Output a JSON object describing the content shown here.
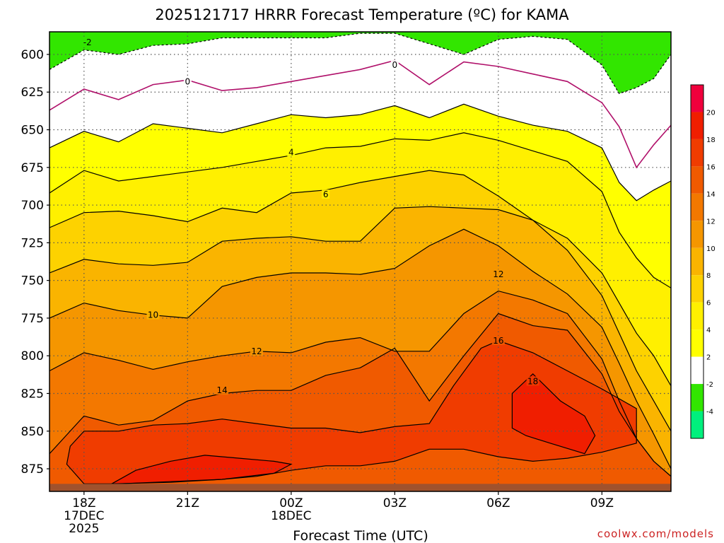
{
  "chart_data": {
    "type": "contour",
    "title": "2025121717 HRRR Forecast Temperature (ºC) for KAMA",
    "xlabel": "Forecast Time (UTC)",
    "ylabel": "",
    "credit": "coolwx.com/models",
    "x_ticks": [
      {
        "hour": 0,
        "lines": [
          "18Z",
          "17DEC",
          "2025"
        ]
      },
      {
        "hour": 3,
        "lines": [
          "21Z"
        ]
      },
      {
        "hour": 6,
        "lines": [
          "00Z",
          "18DEC"
        ]
      },
      {
        "hour": 9,
        "lines": [
          "03Z"
        ]
      },
      {
        "hour": 12,
        "lines": [
          "06Z"
        ]
      },
      {
        "hour": 15,
        "lines": [
          "09Z"
        ]
      }
    ],
    "xlim_hours": [
      -1,
      17
    ],
    "y_axis": {
      "unit": "hPa",
      "ticks": [
        600,
        625,
        650,
        675,
        700,
        725,
        750,
        775,
        800,
        825,
        850,
        875
      ],
      "ylim": [
        585,
        890
      ],
      "surface_pressure": 885
    },
    "colorbar": {
      "labels": [
        20,
        18,
        16,
        14,
        12,
        10,
        8,
        6,
        4,
        2,
        -2,
        -4
      ],
      "colors": [
        "#f0003c",
        "#f01e00",
        "#f03c00",
        "#f05a00",
        "#f37800",
        "#f59600",
        "#fab400",
        "#fdd200",
        "#fff000",
        "#ffff00",
        "#ffffff",
        "#32e600",
        "#00f07d"
      ]
    },
    "contour_labels": [
      {
        "value": -2,
        "text": "-2",
        "hour": 0.1,
        "pressure": 592
      },
      {
        "value": 0,
        "text": "0",
        "hour": 3.0,
        "pressure": 618
      },
      {
        "value": 0,
        "text": "0",
        "hour": 9.0,
        "pressure": 607
      },
      {
        "value": 4,
        "text": "4",
        "hour": 6.0,
        "pressure": 665
      },
      {
        "value": 6,
        "text": "6",
        "hour": 7.0,
        "pressure": 693
      },
      {
        "value": 10,
        "text": "10",
        "hour": 2.0,
        "pressure": 773
      },
      {
        "value": 12,
        "text": "12",
        "hour": 5.0,
        "pressure": 797
      },
      {
        "value": 12,
        "text": "12",
        "hour": 12.0,
        "pressure": 746
      },
      {
        "value": 14,
        "text": "14",
        "hour": 4.0,
        "pressure": 823
      },
      {
        "value": 16,
        "text": "16",
        "hour": 12.0,
        "pressure": 790
      },
      {
        "value": 18,
        "text": "18",
        "hour": 13.0,
        "pressure": 817
      }
    ],
    "isotherms": [
      {
        "value": -2,
        "hours": [
          -1,
          0,
          1,
          2,
          3,
          4,
          5,
          6,
          7,
          8,
          9,
          10,
          11,
          12,
          13,
          14,
          15,
          15.5,
          16,
          16.5,
          17
        ],
        "pressure": [
          610,
          597,
          600,
          594,
          593,
          589,
          589,
          589,
          589,
          586,
          586,
          593,
          600,
          590,
          588,
          590,
          607,
          626,
          622,
          616,
          600
        ]
      },
      {
        "value": 0,
        "hours": [
          -1,
          0,
          1,
          2,
          3,
          4,
          5,
          6,
          7,
          8,
          9,
          10,
          11,
          12,
          13,
          14,
          15,
          15.5,
          16,
          16.5,
          17
        ],
        "pressure": [
          637,
          623,
          630,
          620,
          617,
          624,
          622,
          618,
          614,
          610,
          604,
          620,
          605,
          608,
          613,
          618,
          632,
          648,
          675,
          660,
          647
        ]
      },
      {
        "value": 2,
        "hours": [
          -1,
          0,
          1,
          2,
          3,
          4,
          5,
          6,
          7,
          8,
          9,
          10,
          11,
          12,
          13,
          14,
          15,
          15.5,
          16,
          16.5,
          17
        ],
        "pressure": [
          662,
          651,
          658,
          646,
          649,
          652,
          646,
          640,
          642,
          640,
          634,
          642,
          633,
          641,
          647,
          651,
          662,
          685,
          697,
          690,
          684
        ]
      },
      {
        "value": 4,
        "hours": [
          -1,
          0,
          1,
          2,
          3,
          4,
          5,
          6,
          7,
          8,
          9,
          10,
          11,
          12,
          13,
          14,
          15,
          15.5,
          16,
          16.5,
          17
        ],
        "pressure": [
          692,
          677,
          684,
          681,
          678,
          675,
          671,
          667,
          662,
          661,
          656,
          657,
          652,
          657,
          664,
          671,
          691,
          718,
          735,
          748,
          755
        ]
      },
      {
        "value": 6,
        "hours": [
          -1,
          0,
          1,
          2,
          3,
          4,
          5,
          6,
          7,
          8,
          9,
          10,
          11,
          12,
          13,
          14,
          15,
          15.5,
          16,
          16.5,
          17
        ],
        "pressure": [
          715,
          705,
          704,
          707,
          711,
          702,
          705,
          692,
          690,
          685,
          681,
          677,
          680,
          694,
          710,
          722,
          745,
          765,
          785,
          800,
          820
        ]
      },
      {
        "value": 8,
        "hours": [
          -1,
          0,
          1,
          2,
          3,
          4,
          5,
          6,
          7,
          8,
          9,
          10,
          11,
          12,
          13,
          14,
          15,
          15.5,
          16,
          16.5,
          17
        ],
        "pressure": [
          745,
          736,
          739,
          740,
          738,
          724,
          722,
          721,
          724,
          724,
          702,
          701,
          702,
          703,
          710,
          730,
          760,
          785,
          810,
          830,
          850
        ]
      },
      {
        "value": 10,
        "hours": [
          -1,
          0,
          1,
          2,
          3,
          4,
          5,
          6,
          7,
          8,
          9,
          10,
          11,
          12,
          13,
          14,
          15,
          15.5,
          16,
          16.5,
          17
        ],
        "pressure": [
          775,
          765,
          770,
          773,
          775,
          754,
          748,
          745,
          745,
          746,
          742,
          727,
          716,
          727,
          744,
          759,
          781,
          805,
          830,
          852,
          875
        ]
      },
      {
        "value": 12,
        "hours": [
          -1,
          0,
          1,
          2,
          3,
          4,
          5,
          6,
          7,
          8,
          9,
          10,
          11,
          12,
          13,
          14,
          15,
          15.5,
          16,
          16.5,
          17
        ],
        "pressure": [
          810,
          798,
          803,
          809,
          804,
          800,
          797,
          798,
          791,
          788,
          797,
          797,
          772,
          757,
          763,
          772,
          802,
          830,
          855,
          870,
          880
        ]
      },
      {
        "value": 14,
        "hours": [
          -1,
          0,
          1,
          2,
          3,
          4,
          5,
          6,
          7,
          8,
          9,
          10,
          11,
          12,
          13,
          14,
          15,
          15.5,
          16,
          16.5,
          17
        ],
        "pressure": [
          865,
          840,
          846,
          843,
          830,
          825,
          823,
          823,
          813,
          808,
          795,
          830,
          800,
          772,
          780,
          783,
          812,
          837,
          855,
          870,
          880
        ]
      }
    ],
    "closed_contours": [
      {
        "value": 16,
        "points": [
          [
            -0.5,
            872
          ],
          [
            -0.4,
            860
          ],
          [
            0,
            850
          ],
          [
            1,
            850
          ],
          [
            2,
            846
          ],
          [
            3,
            845
          ],
          [
            4,
            842
          ],
          [
            5,
            845
          ],
          [
            6,
            848
          ],
          [
            7,
            848
          ],
          [
            8,
            851
          ],
          [
            9,
            847
          ],
          [
            10,
            845
          ],
          [
            10.7,
            820
          ],
          [
            11.5,
            795
          ],
          [
            12,
            790
          ],
          [
            13,
            798
          ],
          [
            14,
            810
          ],
          [
            15,
            822
          ],
          [
            16,
            835
          ],
          [
            16,
            858
          ],
          [
            15,
            864
          ],
          [
            14,
            868
          ],
          [
            13,
            870
          ],
          [
            12,
            867
          ],
          [
            11,
            862
          ],
          [
            10,
            862
          ],
          [
            9,
            870
          ],
          [
            8,
            873
          ],
          [
            7,
            873
          ],
          [
            6,
            876
          ],
          [
            5,
            880
          ],
          [
            4,
            882
          ],
          [
            3,
            883
          ],
          [
            2,
            884
          ],
          [
            1,
            885
          ],
          [
            0,
            885
          ]
        ]
      },
      {
        "value": 18,
        "points": [
          [
            0.8,
            885
          ],
          [
            1.5,
            876
          ],
          [
            2.5,
            870
          ],
          [
            3.5,
            866
          ],
          [
            4.5,
            868
          ],
          [
            5.5,
            870
          ],
          [
            6,
            872
          ],
          [
            5.5,
            878
          ],
          [
            4,
            882
          ],
          [
            2.5,
            884
          ]
        ]
      },
      {
        "value": 18,
        "points": [
          [
            12.4,
            848
          ],
          [
            12.4,
            825
          ],
          [
            13,
            812
          ],
          [
            13.8,
            830
          ],
          [
            14.5,
            840
          ],
          [
            14.8,
            853
          ],
          [
            14.5,
            865
          ],
          [
            13.5,
            858
          ],
          [
            12.8,
            853
          ]
        ]
      }
    ]
  }
}
